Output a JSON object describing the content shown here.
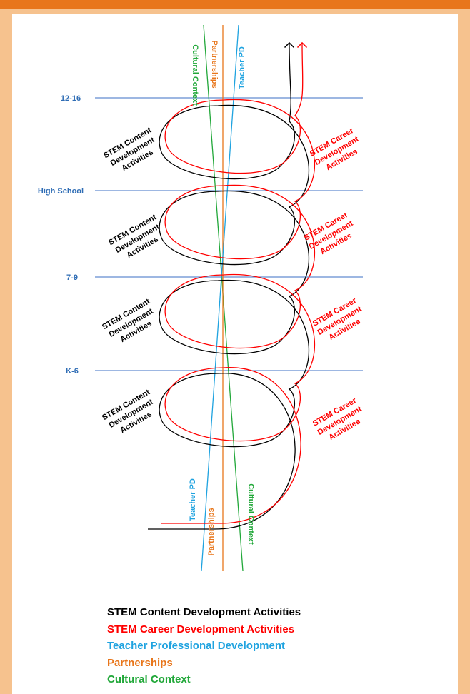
{
  "colors": {
    "content": "#000000",
    "career": "#ff0000",
    "teacher_pd": "#1fa3e0",
    "partnerships": "#e8761b",
    "cultural": "#22a83a",
    "level_line": "#3b6fc4",
    "level_text": "#2f6db5",
    "frame": "#f6c28e",
    "frame_top": "#e8761b"
  },
  "levels": [
    "12-16",
    "High School",
    "7-9",
    "K-6"
  ],
  "activities": {
    "content": "STEM Content Development Activities",
    "career": "STEM Career Development Activities",
    "content_lines": [
      "STEM Content",
      "Development",
      "Activities"
    ],
    "career_lines": [
      "STEM Career",
      "Development",
      "Activities"
    ]
  },
  "strands": {
    "teacher_pd": "Teacher PD",
    "partnerships": "Partnerships",
    "cultural": "Cultural Context"
  },
  "legend": [
    {
      "text": "STEM Content Development Activities",
      "color_key": "content"
    },
    {
      "text": "STEM Career Development Activities",
      "color_key": "career"
    },
    {
      "text": "Teacher Professional Development",
      "color_key": "teacher_pd"
    },
    {
      "text": "Partnerships",
      "color_key": "partnerships"
    },
    {
      "text": "Cultural Context",
      "color_key": "cultural"
    }
  ]
}
